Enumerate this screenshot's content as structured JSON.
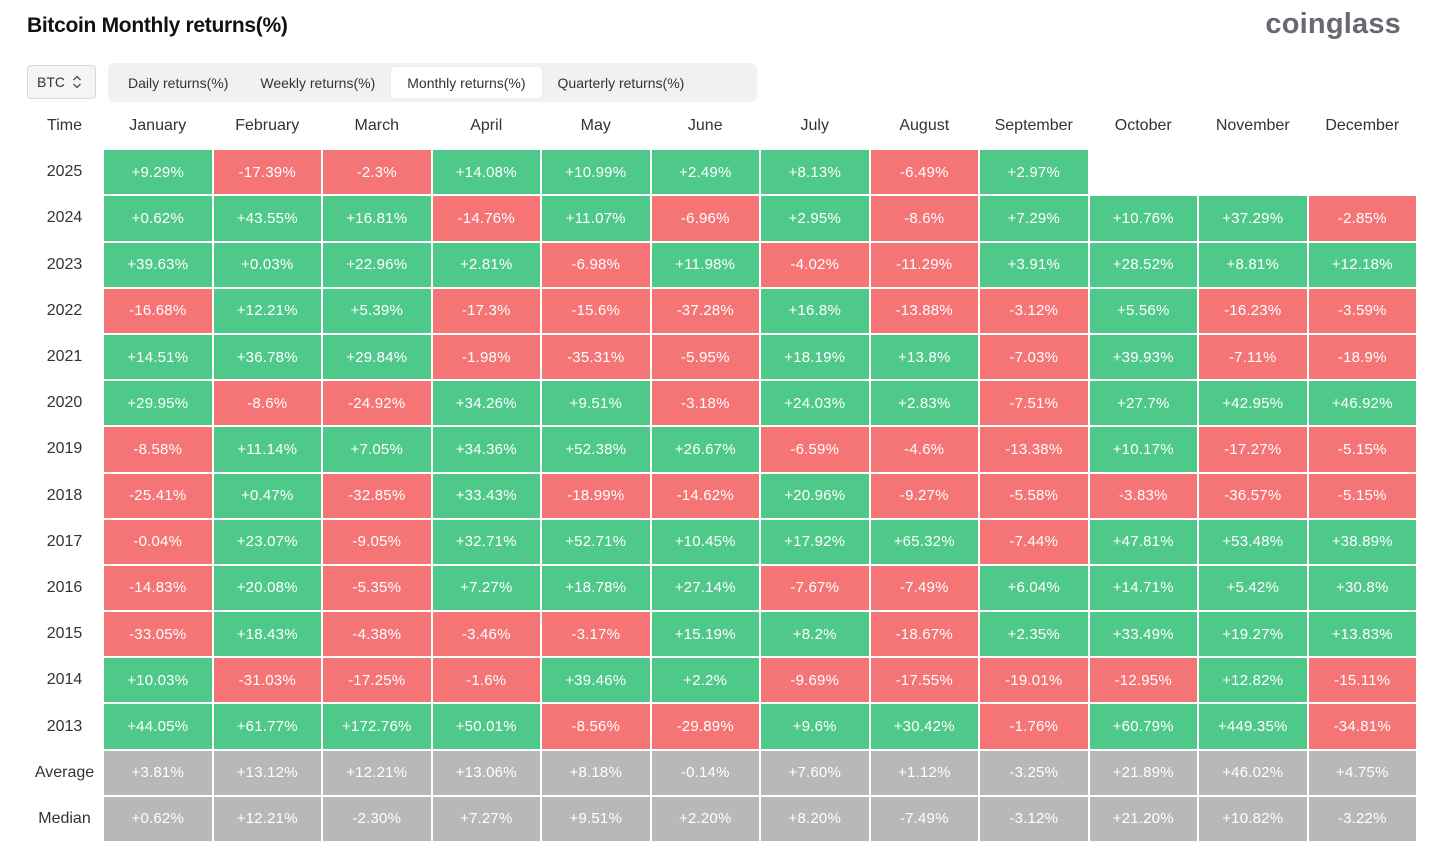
{
  "title": "Bitcoin Monthly returns(%)",
  "brand": "coinglass",
  "coin_select": {
    "value": "BTC",
    "icon": "chevron-updown-icon"
  },
  "tabs": [
    {
      "label": "Daily returns(%)",
      "active": false
    },
    {
      "label": "Weekly returns(%)",
      "active": false
    },
    {
      "label": "Monthly returns(%)",
      "active": true
    },
    {
      "label": "Quarterly returns(%)",
      "active": false
    }
  ],
  "colors": {
    "positive": "#4fc98a",
    "negative": "#f57576",
    "stat": "#b8b8b8"
  },
  "table": {
    "corner": "Time",
    "columns": [
      "January",
      "February",
      "March",
      "April",
      "May",
      "June",
      "July",
      "August",
      "September",
      "October",
      "November",
      "December"
    ],
    "rows": [
      {
        "label": "2025",
        "values": [
          "+9.29%",
          "-17.39%",
          "-2.3%",
          "+14.08%",
          "+10.99%",
          "+2.49%",
          "+8.13%",
          "-6.49%",
          "+2.97%",
          "",
          "",
          ""
        ]
      },
      {
        "label": "2024",
        "values": [
          "+0.62%",
          "+43.55%",
          "+16.81%",
          "-14.76%",
          "+11.07%",
          "-6.96%",
          "+2.95%",
          "-8.6%",
          "+7.29%",
          "+10.76%",
          "+37.29%",
          "-2.85%"
        ]
      },
      {
        "label": "2023",
        "values": [
          "+39.63%",
          "+0.03%",
          "+22.96%",
          "+2.81%",
          "-6.98%",
          "+11.98%",
          "-4.02%",
          "-11.29%",
          "+3.91%",
          "+28.52%",
          "+8.81%",
          "+12.18%"
        ]
      },
      {
        "label": "2022",
        "values": [
          "-16.68%",
          "+12.21%",
          "+5.39%",
          "-17.3%",
          "-15.6%",
          "-37.28%",
          "+16.8%",
          "-13.88%",
          "-3.12%",
          "+5.56%",
          "-16.23%",
          "-3.59%"
        ]
      },
      {
        "label": "2021",
        "values": [
          "+14.51%",
          "+36.78%",
          "+29.84%",
          "-1.98%",
          "-35.31%",
          "-5.95%",
          "+18.19%",
          "+13.8%",
          "-7.03%",
          "+39.93%",
          "-7.11%",
          "-18.9%"
        ]
      },
      {
        "label": "2020",
        "values": [
          "+29.95%",
          "-8.6%",
          "-24.92%",
          "+34.26%",
          "+9.51%",
          "-3.18%",
          "+24.03%",
          "+2.83%",
          "-7.51%",
          "+27.7%",
          "+42.95%",
          "+46.92%"
        ]
      },
      {
        "label": "2019",
        "values": [
          "-8.58%",
          "+11.14%",
          "+7.05%",
          "+34.36%",
          "+52.38%",
          "+26.67%",
          "-6.59%",
          "-4.6%",
          "-13.38%",
          "+10.17%",
          "-17.27%",
          "-5.15%"
        ]
      },
      {
        "label": "2018",
        "values": [
          "-25.41%",
          "+0.47%",
          "-32.85%",
          "+33.43%",
          "-18.99%",
          "-14.62%",
          "+20.96%",
          "-9.27%",
          "-5.58%",
          "-3.83%",
          "-36.57%",
          "-5.15%"
        ]
      },
      {
        "label": "2017",
        "values": [
          "-0.04%",
          "+23.07%",
          "-9.05%",
          "+32.71%",
          "+52.71%",
          "+10.45%",
          "+17.92%",
          "+65.32%",
          "-7.44%",
          "+47.81%",
          "+53.48%",
          "+38.89%"
        ]
      },
      {
        "label": "2016",
        "values": [
          "-14.83%",
          "+20.08%",
          "-5.35%",
          "+7.27%",
          "+18.78%",
          "+27.14%",
          "-7.67%",
          "-7.49%",
          "+6.04%",
          "+14.71%",
          "+5.42%",
          "+30.8%"
        ]
      },
      {
        "label": "2015",
        "values": [
          "-33.05%",
          "+18.43%",
          "-4.38%",
          "-3.46%",
          "-3.17%",
          "+15.19%",
          "+8.2%",
          "-18.67%",
          "+2.35%",
          "+33.49%",
          "+19.27%",
          "+13.83%"
        ]
      },
      {
        "label": "2014",
        "values": [
          "+10.03%",
          "-31.03%",
          "-17.25%",
          "-1.6%",
          "+39.46%",
          "+2.2%",
          "-9.69%",
          "-17.55%",
          "-19.01%",
          "-12.95%",
          "+12.82%",
          "-15.11%"
        ]
      },
      {
        "label": "2013",
        "values": [
          "+44.05%",
          "+61.77%",
          "+172.76%",
          "+50.01%",
          "-8.56%",
          "-29.89%",
          "+9.6%",
          "+30.42%",
          "-1.76%",
          "+60.79%",
          "+449.35%",
          "-34.81%"
        ]
      }
    ],
    "stats": [
      {
        "label": "Average",
        "values": [
          "+3.81%",
          "+13.12%",
          "+12.21%",
          "+13.06%",
          "+8.18%",
          "-0.14%",
          "+7.60%",
          "+1.12%",
          "-3.25%",
          "+21.89%",
          "+46.02%",
          "+4.75%"
        ]
      },
      {
        "label": "Median",
        "values": [
          "+0.62%",
          "+12.21%",
          "-2.30%",
          "+7.27%",
          "+9.51%",
          "+2.20%",
          "+8.20%",
          "-7.49%",
          "-3.12%",
          "+21.20%",
          "+10.82%",
          "-3.22%"
        ]
      }
    ]
  }
}
